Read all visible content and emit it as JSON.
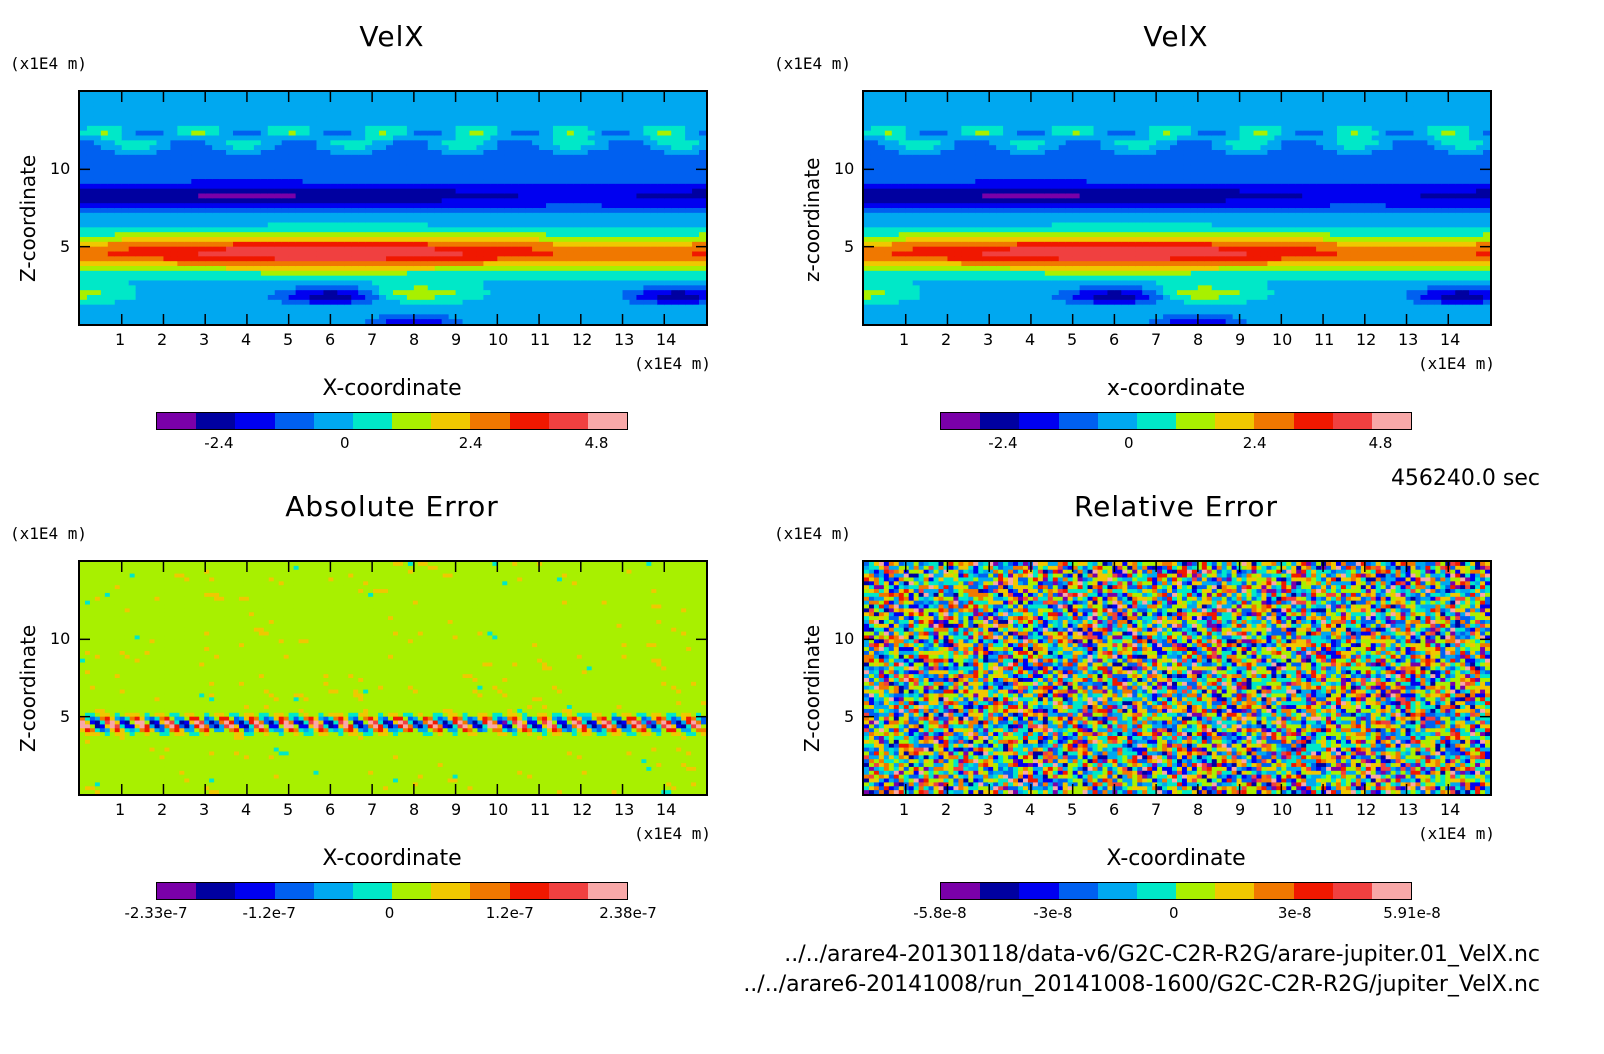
{
  "chart_data": [
    {
      "type": "heatmap",
      "title": "VelX",
      "xlabel": "X-coordinate",
      "ylabel": "Z-coordinate",
      "x_unit": "(x1E4 m)",
      "y_unit": "(x1E4 m)",
      "xlim": [
        0,
        15
      ],
      "ylim": [
        0,
        15
      ],
      "x_ticks": [
        "1",
        "2",
        "3",
        "4",
        "5",
        "6",
        "7",
        "8",
        "9",
        "10",
        "11",
        "12",
        "13",
        "14"
      ],
      "y_ticks": [
        "5",
        "10"
      ],
      "colorbar_ticks": [
        "-2.4",
        "0",
        "2.4",
        "4.8"
      ],
      "colorbar_range": [
        -3.6,
        5.4
      ],
      "pattern": "bands"
    },
    {
      "type": "heatmap",
      "title": "VelX",
      "xlabel": "x-coordinate",
      "ylabel": "z-coordinate",
      "x_unit": "(x1E4 m)",
      "y_unit": "(x1E4 m)",
      "xlim": [
        0,
        15
      ],
      "ylim": [
        0,
        15
      ],
      "x_ticks": [
        "1",
        "2",
        "3",
        "4",
        "5",
        "6",
        "7",
        "8",
        "9",
        "10",
        "11",
        "12",
        "13",
        "14"
      ],
      "y_ticks": [
        "5",
        "10"
      ],
      "colorbar_ticks": [
        "-2.4",
        "0",
        "2.4",
        "4.8"
      ],
      "colorbar_range": [
        -3.6,
        5.4
      ],
      "pattern": "bands"
    },
    {
      "type": "heatmap",
      "title": "Absolute Error",
      "xlabel": "X-coordinate",
      "ylabel": "Z-coordinate",
      "x_unit": "(x1E4 m)",
      "y_unit": "(x1E4 m)",
      "xlim": [
        0,
        15
      ],
      "ylim": [
        0,
        15
      ],
      "x_ticks": [
        "1",
        "2",
        "3",
        "4",
        "5",
        "6",
        "7",
        "8",
        "9",
        "10",
        "11",
        "12",
        "13",
        "14"
      ],
      "y_ticks": [
        "5",
        "10"
      ],
      "colorbar_ticks": [
        "-2.33e-7",
        "-1.2e-7",
        "0",
        "1.2e-7",
        "2.38e-7"
      ],
      "colorbar_range": [
        -2.33e-07,
        2.38e-07
      ],
      "pattern": "abs_noise"
    },
    {
      "type": "heatmap",
      "title": "Relative Error",
      "xlabel": "X-coordinate",
      "ylabel": "Z-coordinate",
      "x_unit": "(x1E4 m)",
      "y_unit": "(x1E4 m)",
      "xlim": [
        0,
        15
      ],
      "ylim": [
        0,
        15
      ],
      "x_ticks": [
        "1",
        "2",
        "3",
        "4",
        "5",
        "6",
        "7",
        "8",
        "9",
        "10",
        "11",
        "12",
        "13",
        "14"
      ],
      "y_ticks": [
        "5",
        "10"
      ],
      "colorbar_ticks": [
        "-5.8e-8",
        "-3e-8",
        "0",
        "3e-8",
        "5.91e-8"
      ],
      "colorbar_range": [
        -5.8e-08,
        5.91e-08
      ],
      "pattern": "rel_noise"
    }
  ],
  "colormap": [
    "#7a00a8",
    "#0000a0",
    "#0000f0",
    "#0060f0",
    "#00a8f0",
    "#00e8c8",
    "#a8f000",
    "#f0c800",
    "#f07800",
    "#f01800",
    "#f04040",
    "#f8a8a8"
  ],
  "time_label": "456240.0 sec",
  "file_paths": [
    "../../arare4-20130118/data-v6/G2C-C2R-R2G/arare-jupiter.01_VelX.nc",
    "../../arare6-20141008/run_20141008-1600/G2C-C2R-R2G/jupiter_VelX.nc"
  ]
}
